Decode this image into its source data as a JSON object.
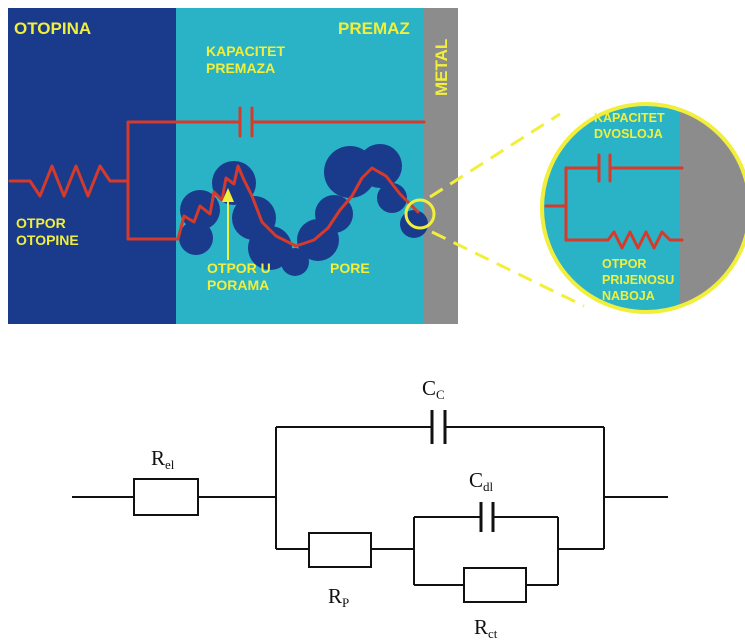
{
  "diagram": {
    "regions": {
      "solution": "OTOPINA",
      "coating": "PREMAZ",
      "metal": "METAL"
    },
    "labels": {
      "coating_capacitance": [
        "KAPACITET",
        "PREMAZA"
      ],
      "solution_resistance": [
        "OTPOR",
        "OTOPINE"
      ],
      "pore_resistance": [
        "OTPOR U",
        "PORAMA"
      ],
      "pores": "PORE",
      "double_layer_capacitance": [
        "KAPACITET",
        "DVOSLOJA"
      ],
      "charge_transfer_resistance": [
        "OTPOR",
        "PRIJENOSU",
        "NABOJA"
      ]
    },
    "colors": {
      "solution": "#1a3a8c",
      "coating": "#2ab3c6",
      "metal": "#8c8c8c",
      "wire": "#d63a2a",
      "label": "#f2ef3c",
      "pore": "#1a3a8c"
    }
  },
  "circuit": {
    "R_el": {
      "main": "R",
      "sub": "el"
    },
    "C_c": {
      "main": "C",
      "sub": "C"
    },
    "C_dl": {
      "main": "C",
      "sub": "dl"
    },
    "R_p": {
      "main": "R",
      "sub": "P"
    },
    "R_ct": {
      "main": "R",
      "sub": "ct"
    }
  }
}
